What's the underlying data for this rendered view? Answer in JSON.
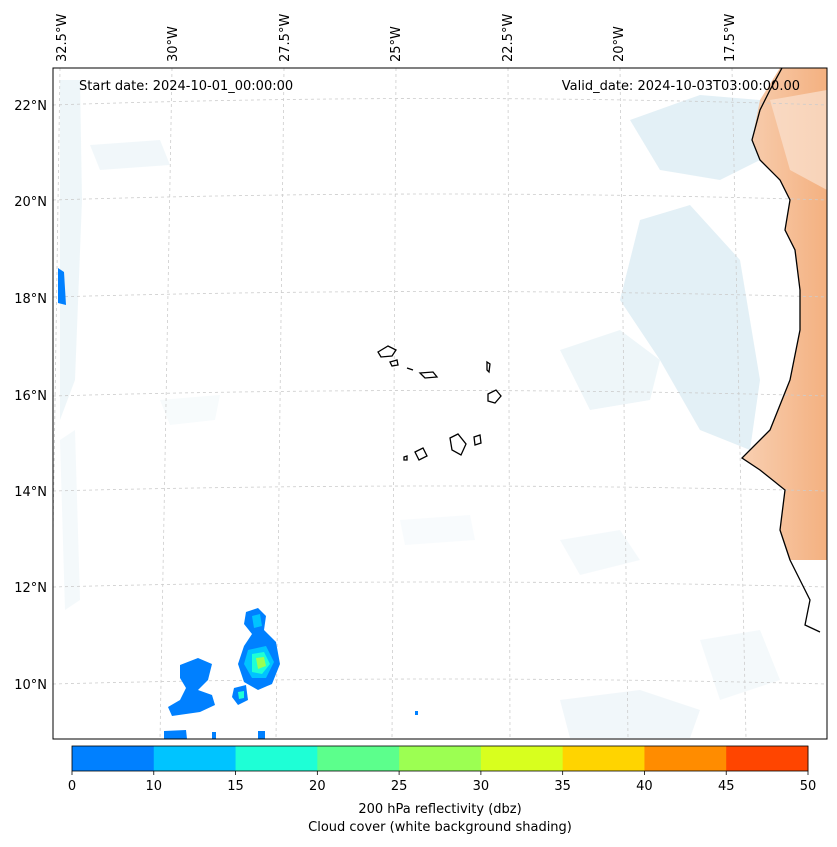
{
  "header": {
    "start_date": "Start date: 2024-10-01_00:00:00",
    "valid_date": "Valid_date: 2024-10-03T03:00:00.00"
  },
  "map": {
    "longitude_labels": [
      "32.5°W",
      "30°W",
      "27.5°W",
      "25°W",
      "22.5°W",
      "20°W",
      "17.5°W"
    ],
    "latitude_labels": [
      "22°N",
      "20°N",
      "18°N",
      "16°N",
      "14°N",
      "12°N",
      "10°N"
    ]
  },
  "colorbar": {
    "ticks": [
      "0",
      "10",
      "15",
      "20",
      "25",
      "30",
      "35",
      "40",
      "45",
      "50"
    ],
    "colors": [
      "#0080ff",
      "#00c4ff",
      "#1effd6",
      "#5cff8c",
      "#9cff52",
      "#d8ff1e",
      "#ffd400",
      "#ff8c00",
      "#ff4500"
    ],
    "label_line1": "200 hPa reflectivity (dbz)",
    "label_line2": "Cloud cover (white background shading)"
  }
}
